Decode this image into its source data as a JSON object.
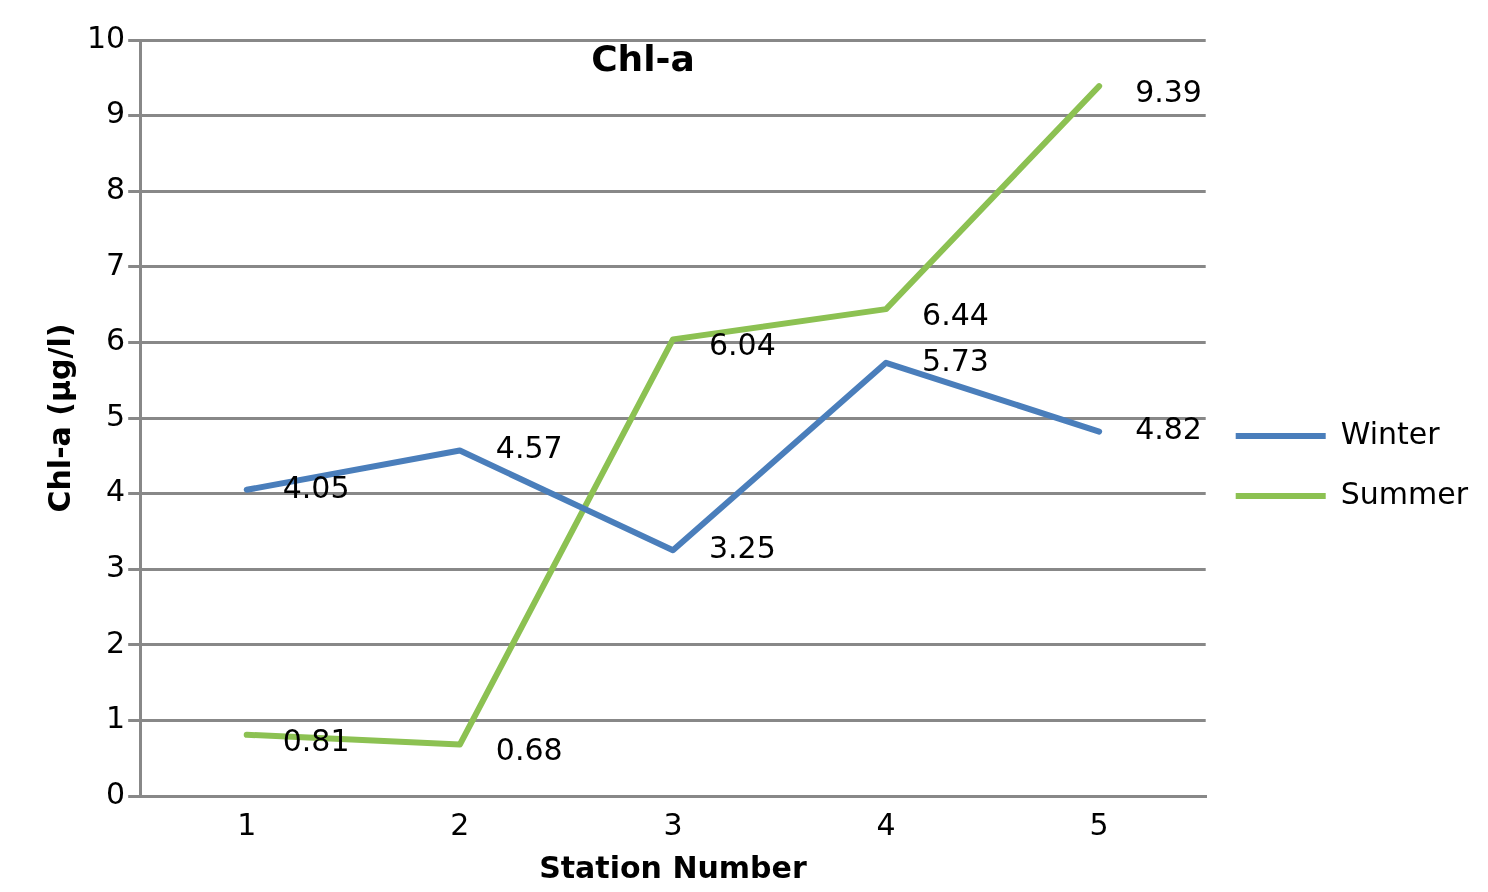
{
  "chart_data": {
    "type": "line",
    "title": "Chl-a",
    "xlabel": "Station Number",
    "ylabel": "Chl-a (µg/l)",
    "categories": [
      "1",
      "2",
      "3",
      "4",
      "5"
    ],
    "series": [
      {
        "name": "Winter",
        "color": "#4a7ebb",
        "values": [
          4.05,
          4.57,
          3.25,
          5.73,
          4.82
        ]
      },
      {
        "name": "Summer",
        "color": "#8cc152",
        "values": [
          0.81,
          0.68,
          6.04,
          6.44,
          9.39
        ]
      }
    ],
    "ylim": [
      0,
      10
    ],
    "yticks": [
      0,
      1,
      2,
      3,
      4,
      5,
      6,
      7,
      8,
      9,
      10
    ],
    "grid": "y",
    "legend": "right",
    "data_labels": true,
    "marker": "none",
    "line_style": "solid"
  }
}
